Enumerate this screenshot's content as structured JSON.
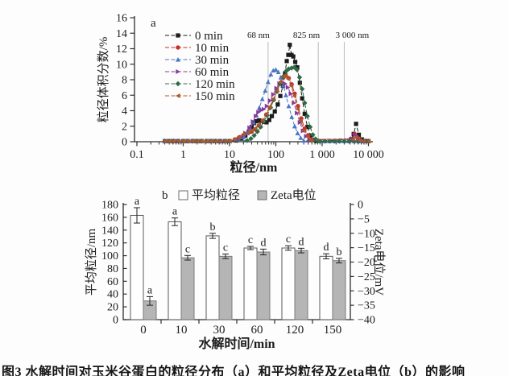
{
  "figure": {
    "caption": "图3 水解时间对玉米谷蛋白的粒径分布（a）和平均粒径及Zeta电位（b）的影响"
  },
  "chart_data": [
    {
      "type": "line",
      "panel_label": "a",
      "xlabel": "粒径/nm",
      "ylabel": "粒径体积分数/%",
      "x_scale": "log",
      "xlim": [
        0.1,
        10000
      ],
      "ylim": [
        0,
        16
      ],
      "x_ticks": [
        {
          "label": "0.1",
          "v": 0.1
        },
        {
          "label": "1",
          "v": 1
        },
        {
          "label": "10",
          "v": 10
        },
        {
          "label": "100",
          "v": 100
        },
        {
          "label": "1 000",
          "v": 1000
        },
        {
          "label": "10 000",
          "v": 10000
        }
      ],
      "y_ticks": [
        {
          "label": "0",
          "v": 0
        },
        {
          "label": "2",
          "v": 2
        },
        {
          "label": "4",
          "v": 4
        },
        {
          "label": "6",
          "v": 6
        },
        {
          "label": "8",
          "v": 8
        },
        {
          "label": "10",
          "v": 10
        },
        {
          "label": "12",
          "v": 12
        },
        {
          "label": "14",
          "v": 14
        },
        {
          "label": "16",
          "v": 16
        }
      ],
      "grid_annotations": [
        {
          "label": "68 nm",
          "x": 68,
          "anchor": "end"
        },
        {
          "label": "825 nm",
          "x": 825,
          "anchor": "end"
        },
        {
          "label": "3 000 nm",
          "x": 3000,
          "anchor": "middle"
        }
      ],
      "baseline_y": 0.07,
      "baseline_pre_x": [
        0.4,
        0.5,
        0.62,
        0.78,
        1.0,
        1.25,
        1.6,
        2.0,
        2.5,
        3.2,
        4.0,
        5.0,
        6.3,
        8.0,
        10.0
      ],
      "baseline_post_x": [
        900,
        1150,
        1450,
        1850,
        2350,
        3000,
        3800,
        4900,
        6200,
        7900,
        10000
      ],
      "series": [
        {
          "name": "0 min",
          "color": "#1c1c1c",
          "marker": "square",
          "points": [
            [
              14,
              0.15
            ],
            [
              18,
              0.4
            ],
            [
              22,
              0.8
            ],
            [
              26,
              1.3
            ],
            [
              30,
              1.9
            ],
            [
              34,
              2.4
            ],
            [
              38,
              2.65
            ],
            [
              43,
              2.75
            ],
            [
              48,
              2.7
            ],
            [
              55,
              2.55
            ],
            [
              63,
              2.5
            ],
            [
              72,
              2.8
            ],
            [
              82,
              3.3
            ],
            [
              95,
              3.9
            ],
            [
              110,
              4.8
            ],
            [
              125,
              5.9
            ],
            [
              142,
              7.2
            ],
            [
              158,
              8.8
            ],
            [
              172,
              10.4
            ],
            [
              186,
              11.2
            ],
            [
              200,
              12.5
            ],
            [
              218,
              11.2
            ],
            [
              238,
              11.0
            ],
            [
              262,
              10.3
            ],
            [
              290,
              9.6
            ],
            [
              330,
              7.6
            ],
            [
              370,
              5.6
            ],
            [
              420,
              3.6
            ],
            [
              480,
              1.9
            ],
            [
              550,
              0.8
            ],
            [
              640,
              0.25
            ],
            [
              750,
              0.1
            ],
            [
              4200,
              0.3
            ],
            [
              4800,
              1.0
            ],
            [
              5400,
              2.3
            ],
            [
              6200,
              0.9
            ],
            [
              7200,
              0.3
            ],
            [
              8500,
              0.1
            ]
          ]
        },
        {
          "name": "10 min",
          "color": "#cc2b2b",
          "marker": "circle",
          "points": [
            [
              13,
              0.3
            ],
            [
              16,
              0.55
            ],
            [
              20,
              0.85
            ],
            [
              25,
              1.1
            ],
            [
              30,
              1.3
            ],
            [
              36,
              1.6
            ],
            [
              43,
              2.1
            ],
            [
              52,
              2.7
            ],
            [
              62,
              3.5
            ],
            [
              74,
              4.4
            ],
            [
              88,
              5.4
            ],
            [
              105,
              6.5
            ],
            [
              125,
              7.6
            ],
            [
              145,
              8.3
            ],
            [
              165,
              8.5
            ],
            [
              190,
              8.2
            ],
            [
              220,
              7.4
            ],
            [
              255,
              6.2
            ],
            [
              300,
              4.6
            ],
            [
              355,
              3.0
            ],
            [
              420,
              1.7
            ],
            [
              500,
              0.8
            ],
            [
              600,
              0.3
            ],
            [
              4300,
              0.3
            ],
            [
              5000,
              1.0
            ],
            [
              5800,
              0.5
            ],
            [
              7000,
              0.15
            ]
          ]
        },
        {
          "name": "30 min",
          "color": "#4a77c4",
          "marker": "triangle-up",
          "points": [
            [
              16,
              0.25
            ],
            [
              20,
              0.6
            ],
            [
              24,
              1.1
            ],
            [
              28,
              1.7
            ],
            [
              33,
              2.5
            ],
            [
              38,
              3.4
            ],
            [
              44,
              4.4
            ],
            [
              51,
              5.5
            ],
            [
              59,
              6.6
            ],
            [
              68,
              7.7
            ],
            [
              78,
              8.7
            ],
            [
              88,
              9.2
            ],
            [
              100,
              9.3
            ],
            [
              113,
              9.0
            ],
            [
              128,
              8.3
            ],
            [
              145,
              7.3
            ],
            [
              165,
              6.0
            ],
            [
              190,
              4.6
            ],
            [
              220,
              3.2
            ],
            [
              255,
              2.0
            ],
            [
              295,
              1.1
            ],
            [
              345,
              0.5
            ],
            [
              400,
              0.15
            ]
          ]
        },
        {
          "name": "60 min",
          "color": "#86399b",
          "marker": "triangle-right",
          "points": [
            [
              14,
              0.2
            ],
            [
              18,
              0.6
            ],
            [
              22,
              1.1
            ],
            [
              27,
              1.8
            ],
            [
              32,
              2.6
            ],
            [
              37,
              3.3
            ],
            [
              42,
              3.8
            ],
            [
              48,
              4.05
            ],
            [
              55,
              4.2
            ],
            [
              64,
              4.6
            ],
            [
              75,
              5.3
            ],
            [
              88,
              6.1
            ],
            [
              103,
              6.9
            ],
            [
              120,
              7.5
            ],
            [
              138,
              7.7
            ],
            [
              158,
              7.5
            ],
            [
              182,
              7.0
            ],
            [
              210,
              6.2
            ],
            [
              245,
              5.0
            ],
            [
              285,
              3.7
            ],
            [
              330,
              2.5
            ],
            [
              385,
              1.4
            ],
            [
              450,
              0.7
            ],
            [
              530,
              0.25
            ],
            [
              4500,
              0.4
            ],
            [
              5200,
              0.9
            ],
            [
              6000,
              0.35
            ]
          ]
        },
        {
          "name": "120 min",
          "color": "#2d6a45",
          "marker": "diamond",
          "points": [
            [
              24,
              0.15
            ],
            [
              29,
              0.4
            ],
            [
              34,
              0.8
            ],
            [
              40,
              1.3
            ],
            [
              47,
              1.9
            ],
            [
              55,
              2.6
            ],
            [
              65,
              3.4
            ],
            [
              77,
              4.4
            ],
            [
              90,
              5.4
            ],
            [
              106,
              6.5
            ],
            [
              124,
              7.5
            ],
            [
              144,
              8.4
            ],
            [
              166,
              9.1
            ],
            [
              190,
              9.4
            ],
            [
              218,
              9.5
            ],
            [
              250,
              9.6
            ],
            [
              285,
              9.3
            ],
            [
              325,
              8.3
            ],
            [
              370,
              6.8
            ],
            [
              420,
              5.0
            ],
            [
              480,
              3.3
            ],
            [
              550,
              1.9
            ],
            [
              630,
              0.9
            ],
            [
              720,
              0.35
            ],
            [
              820,
              0.1
            ]
          ]
        },
        {
          "name": "150 min",
          "color": "#a8592f",
          "marker": "triangle-left",
          "points": [
            [
              13,
              0.3
            ],
            [
              16,
              0.6
            ],
            [
              20,
              0.95
            ],
            [
              25,
              1.2
            ],
            [
              30,
              1.45
            ],
            [
              36,
              1.75
            ],
            [
              43,
              2.2
            ],
            [
              52,
              2.8
            ],
            [
              62,
              3.6
            ],
            [
              74,
              4.5
            ],
            [
              88,
              5.5
            ],
            [
              105,
              6.6
            ],
            [
              125,
              7.7
            ],
            [
              145,
              8.4
            ],
            [
              162,
              8.5
            ],
            [
              185,
              8.1
            ],
            [
              215,
              7.2
            ],
            [
              250,
              5.9
            ],
            [
              295,
              4.2
            ],
            [
              345,
              2.7
            ],
            [
              410,
              1.4
            ],
            [
              490,
              0.6
            ],
            [
              580,
              0.2
            ],
            [
              4600,
              0.3
            ],
            [
              5400,
              0.6
            ],
            [
              6400,
              0.2
            ]
          ]
        }
      ]
    },
    {
      "type": "bar",
      "panel_label": "b",
      "xlabel": "水解时间/min",
      "ylabel_left": "平均粒径/nm",
      "ylabel_right": "Zeta电位/mV",
      "categories": [
        "0",
        "10",
        "30",
        "60",
        "120",
        "150"
      ],
      "ylim_left": [
        0,
        180
      ],
      "ylim_right": [
        0,
        -40
      ],
      "left_ticks": [
        {
          "label": "0",
          "v": 0
        },
        {
          "label": "20",
          "v": 20
        },
        {
          "label": "40",
          "v": 40
        },
        {
          "label": "60",
          "v": 60
        },
        {
          "label": "80",
          "v": 80
        },
        {
          "label": "100",
          "v": 100
        },
        {
          "label": "120",
          "v": 120
        },
        {
          "label": "140",
          "v": 140
        },
        {
          "label": "160",
          "v": 160
        },
        {
          "label": "180",
          "v": 180
        }
      ],
      "right_ticks": [
        {
          "label": "0",
          "v": 0
        },
        {
          "label": "−5",
          "v": -5
        },
        {
          "label": "−10",
          "v": -10
        },
        {
          "label": "−15",
          "v": -15
        },
        {
          "label": "−20",
          "v": -20
        },
        {
          "label": "−25",
          "v": -25
        },
        {
          "label": "−30",
          "v": -30
        },
        {
          "label": "−35",
          "v": -35
        },
        {
          "label": "−40",
          "v": -40
        }
      ],
      "legend": [
        {
          "name": "平均粒径",
          "swatch": "open"
        },
        {
          "name": "Zeta电位",
          "swatch": "filled"
        }
      ],
      "series": [
        {
          "name": "平均粒径",
          "axis": "left",
          "fill": "#ffffff",
          "stroke": "#5a5a5a",
          "values": [
            163,
            153,
            131,
            112,
            112,
            99
          ],
          "errors": [
            12,
            6,
            4,
            2.5,
            3.5,
            4
          ],
          "letters": [
            "a",
            "a",
            "b",
            "c",
            "c",
            "d"
          ]
        },
        {
          "name": "Zeta电位",
          "axis": "right",
          "fill": "#b5b5b5",
          "stroke": "#7a7a7a",
          "values": [
            -33.5,
            -18.5,
            -18,
            -16.5,
            -16,
            -19.5
          ],
          "errors": [
            1.5,
            0.8,
            0.8,
            1,
            0.8,
            0.8
          ],
          "letters": [
            "a",
            "c",
            "c",
            "d",
            "d",
            "b"
          ]
        }
      ]
    }
  ]
}
